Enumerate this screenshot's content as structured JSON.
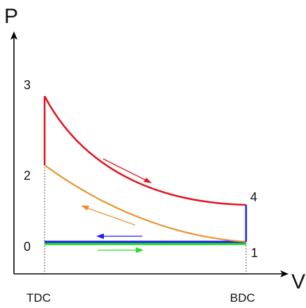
{
  "axes": {
    "y_label": "P",
    "x_label": "V"
  },
  "x_ticks": {
    "left": "TDC",
    "right": "BDC"
  },
  "state_points": {
    "p0": "0",
    "p1": "1",
    "p2": "2",
    "p3": "3",
    "p4": "4"
  },
  "colors": {
    "axis": "#000000",
    "compression": "#e8922e",
    "expansion": "#e0141e",
    "heat_addition": "#e0141e",
    "heat_rejection": "#1a1aff",
    "exhaust": "#1a1aff",
    "intake": "#22dd22",
    "guide": "#555555"
  }
}
